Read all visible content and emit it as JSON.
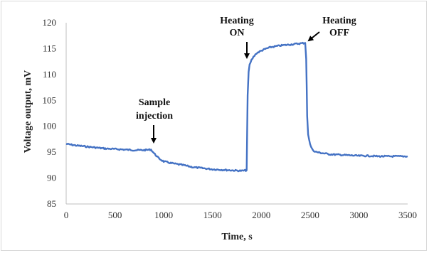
{
  "chart_data": {
    "type": "line",
    "title": "",
    "xlabel": "Time, s",
    "ylabel": "Voltage output, mV",
    "xlim": [
      0,
      3500
    ],
    "ylim": [
      85,
      120
    ],
    "xticks": [
      0,
      500,
      1000,
      1500,
      2000,
      2500,
      3000,
      3500
    ],
    "yticks": [
      85,
      90,
      95,
      100,
      105,
      110,
      115,
      120
    ],
    "grid": false,
    "legend": "none",
    "series": [
      {
        "color": "#4472c4",
        "x": [
          0,
          100,
          200,
          300,
          400,
          500,
          600,
          700,
          800,
          870,
          900,
          950,
          1000,
          1100,
          1200,
          1300,
          1400,
          1500,
          1600,
          1700,
          1800,
          1850,
          1855,
          1860,
          1870,
          1880,
          1900,
          1920,
          1950,
          2000,
          2050,
          2100,
          2200,
          2300,
          2400,
          2450,
          2460,
          2465,
          2470,
          2480,
          2500,
          2520,
          2550,
          2600,
          2700,
          2800,
          2900,
          3000,
          3100,
          3200,
          3300,
          3400,
          3500
        ],
        "y": [
          96.6,
          96.3,
          96.1,
          95.9,
          95.7,
          95.6,
          95.5,
          95.4,
          95.4,
          95.5,
          94.8,
          93.8,
          93.2,
          92.8,
          92.5,
          92.1,
          91.9,
          91.7,
          91.6,
          91.5,
          91.4,
          91.5,
          99.0,
          106.0,
          110.5,
          111.8,
          112.8,
          113.4,
          114.1,
          114.6,
          115.0,
          115.3,
          115.6,
          115.8,
          116.0,
          116.1,
          113.0,
          108.0,
          102.0,
          98.5,
          96.5,
          95.6,
          95.1,
          94.9,
          94.6,
          94.5,
          94.4,
          94.3,
          94.3,
          94.2,
          94.2,
          94.2,
          94.2
        ]
      }
    ],
    "annotations": [
      {
        "lines": [
          "Sample",
          "injection"
        ],
        "x": 880,
        "y": 95.5
      },
      {
        "lines": [
          "Heating",
          "ON"
        ],
        "x": 1855,
        "y": 113.5
      },
      {
        "lines": [
          "Heating",
          "OFF"
        ],
        "x": 2460,
        "y": 116.1
      }
    ]
  }
}
